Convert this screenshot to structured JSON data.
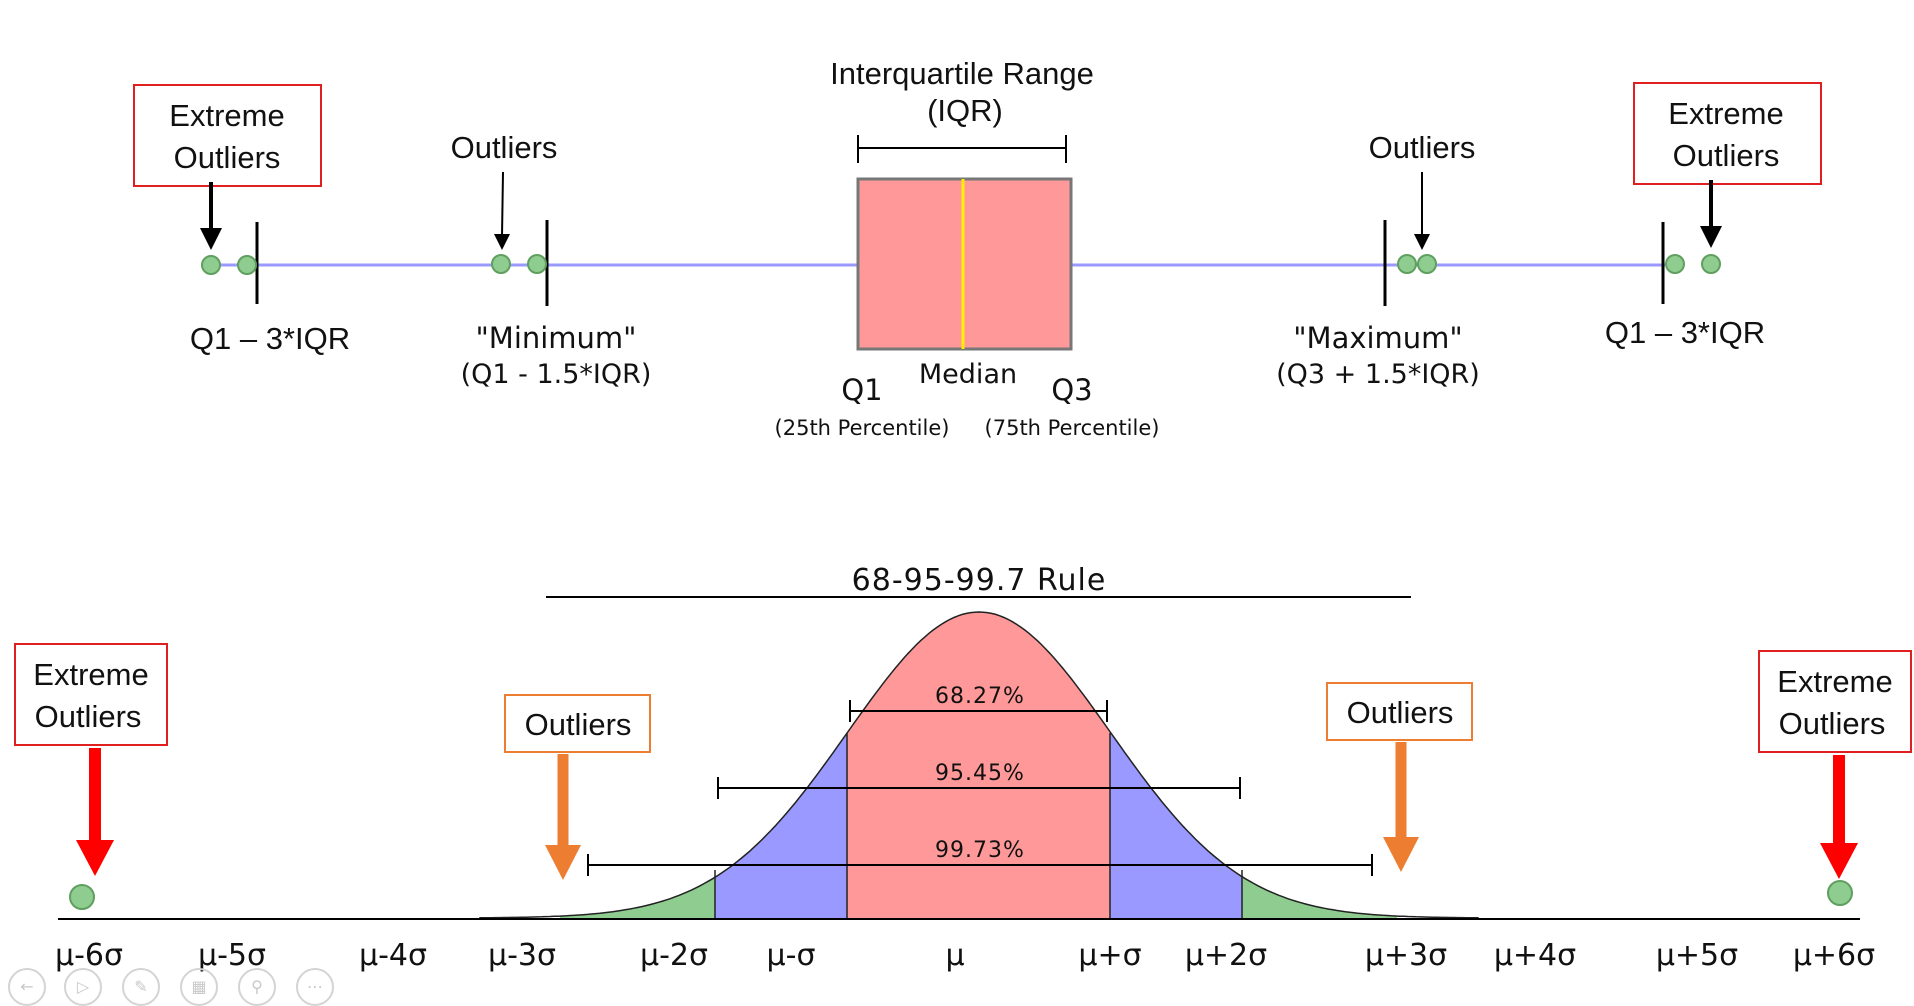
{
  "boxplot": {
    "iqr_title_line1": "Interquartile Range",
    "iqr_title_line2": "(IQR)",
    "extreme_left_line1": "Extreme",
    "extreme_left_line2": "Outliers",
    "extreme_right_line1": "Extreme",
    "extreme_right_line2": "Outliers",
    "outliers_left": "Outliers",
    "outliers_right": "Outliers",
    "q1_minus_3iqr_left": "Q1 – 3*IQR",
    "q1_minus_3iqr_right": "Q1 – 3*IQR",
    "minimum_label": "\"Minimum\"",
    "minimum_formula": "(Q1 - 1.5*IQR)",
    "maximum_label": "\"Maximum\"",
    "maximum_formula": "(Q3 + 1.5*IQR)",
    "q1_label": "Q1",
    "q1_sub": "(25th Percentile)",
    "median_label": "Median",
    "q3_label": "Q3",
    "q3_sub": "(75th Percentile)",
    "colors": {
      "box": "#ff9999",
      "median": "#ffee00",
      "whisker": "#9999ff",
      "point": "#8fcc8f",
      "callout_border": "#e02020"
    }
  },
  "normal": {
    "title": "68-95-99.7 Rule",
    "pct_1sigma": "68.27%",
    "pct_2sigma": "95.45%",
    "pct_3sigma": "99.73%",
    "extreme_left_line1": "Extreme",
    "extreme_left_line2": "Outliers",
    "extreme_right_line1": "Extreme",
    "extreme_right_line2": "Outliers",
    "outliers_left": "Outliers",
    "outliers_right": "Outliers",
    "axis_labels": [
      "μ-6σ",
      "μ-5σ",
      "μ-4σ",
      "μ-3σ",
      "μ-2σ",
      "μ-σ",
      "μ",
      "μ+σ",
      "μ+2σ",
      "μ+3σ",
      "μ+4σ",
      "μ+5σ",
      "μ+6σ"
    ],
    "colors": {
      "center": "#ff9999",
      "mid": "#9999ff",
      "tail": "#8fcc8f",
      "orange": "#ed7d31",
      "red": "#ff0000"
    }
  },
  "controls": [
    "previous-icon",
    "play-icon",
    "pen-icon",
    "slides-icon",
    "zoom-icon",
    "more-icon"
  ]
}
